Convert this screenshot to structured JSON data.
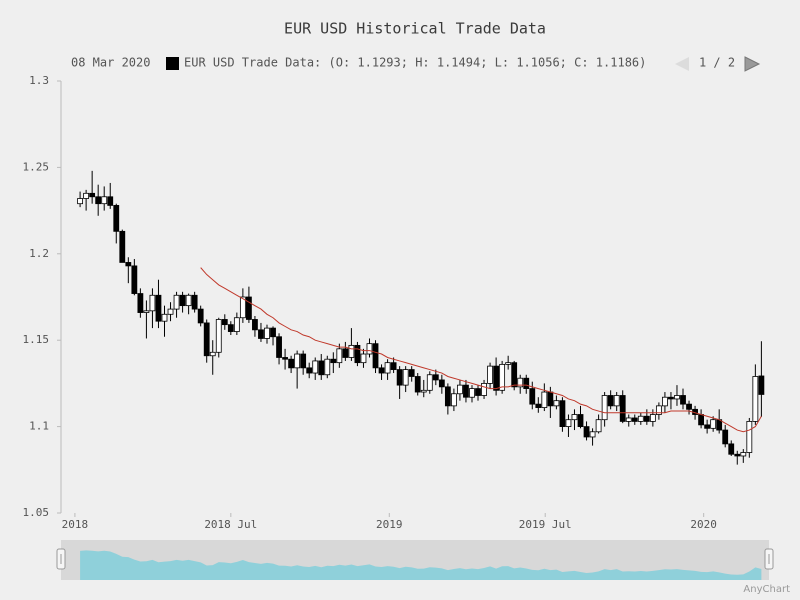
{
  "chart_data": {
    "type": "candlestick",
    "title": "EUR USD Historical Trade Data",
    "legend": {
      "date": "08 Mar 2020",
      "text": "EUR USD Trade Data: (O: 1.1293; H: 1.1494; L: 1.1056; C: 1.1186)",
      "pager": "1 / 2"
    },
    "credits": "AnyChart",
    "x": [
      "2018-01-07",
      "2018-01-14",
      "2018-01-21",
      "2018-01-28",
      "2018-02-04",
      "2018-02-11",
      "2018-02-18",
      "2018-02-25",
      "2018-03-04",
      "2018-03-11",
      "2018-03-18",
      "2018-03-25",
      "2018-04-01",
      "2018-04-08",
      "2018-04-15",
      "2018-04-22",
      "2018-04-29",
      "2018-05-06",
      "2018-05-13",
      "2018-05-20",
      "2018-05-27",
      "2018-06-03",
      "2018-06-10",
      "2018-06-17",
      "2018-06-24",
      "2018-07-01",
      "2018-07-08",
      "2018-07-15",
      "2018-07-22",
      "2018-07-29",
      "2018-08-05",
      "2018-08-12",
      "2018-08-19",
      "2018-08-26",
      "2018-09-02",
      "2018-09-09",
      "2018-09-16",
      "2018-09-23",
      "2018-09-30",
      "2018-10-07",
      "2018-10-14",
      "2018-10-21",
      "2018-10-28",
      "2018-11-04",
      "2018-11-11",
      "2018-11-18",
      "2018-11-25",
      "2018-12-02",
      "2018-12-09",
      "2018-12-16",
      "2018-12-23",
      "2018-12-30",
      "2019-01-06",
      "2019-01-13",
      "2019-01-20",
      "2019-01-27",
      "2019-02-03",
      "2019-02-10",
      "2019-02-17",
      "2019-02-24",
      "2019-03-03",
      "2019-03-10",
      "2019-03-17",
      "2019-03-24",
      "2019-03-31",
      "2019-04-07",
      "2019-04-14",
      "2019-04-21",
      "2019-04-28",
      "2019-05-05",
      "2019-05-12",
      "2019-05-19",
      "2019-05-26",
      "2019-06-02",
      "2019-06-09",
      "2019-06-16",
      "2019-06-23",
      "2019-06-30",
      "2019-07-07",
      "2019-07-14",
      "2019-07-21",
      "2019-07-28",
      "2019-08-04",
      "2019-08-11",
      "2019-08-18",
      "2019-08-25",
      "2019-09-01",
      "2019-09-08",
      "2019-09-15",
      "2019-09-22",
      "2019-09-29",
      "2019-10-06",
      "2019-10-13",
      "2019-10-20",
      "2019-10-27",
      "2019-11-03",
      "2019-11-10",
      "2019-11-17",
      "2019-11-24",
      "2019-12-01",
      "2019-12-08",
      "2019-12-15",
      "2019-12-22",
      "2019-12-29",
      "2020-01-05",
      "2020-01-12",
      "2020-01-19",
      "2020-01-26",
      "2020-02-02",
      "2020-02-09",
      "2020-02-16",
      "2020-02-23",
      "2020-03-01",
      "2020-03-08"
    ],
    "series": [
      {
        "name": "EUR USD Trade Data",
        "rising_color": "#ffffff",
        "falling_color": "#000000",
        "stroke": "#000000",
        "scroller_color": "#8fd0da",
        "values": [
          [
            1.229,
            1.236,
            1.227,
            1.232
          ],
          [
            1.232,
            1.237,
            1.225,
            1.235
          ],
          [
            1.235,
            1.248,
            1.229,
            1.233
          ],
          [
            1.233,
            1.24,
            1.222,
            1.229
          ],
          [
            1.229,
            1.239,
            1.225,
            1.233
          ],
          [
            1.233,
            1.241,
            1.226,
            1.228
          ],
          [
            1.228,
            1.229,
            1.206,
            1.213
          ],
          [
            1.213,
            1.214,
            1.195,
            1.195
          ],
          [
            1.195,
            1.198,
            1.183,
            1.193
          ],
          [
            1.193,
            1.197,
            1.176,
            1.177
          ],
          [
            1.177,
            1.18,
            1.163,
            1.166
          ],
          [
            1.166,
            1.173,
            1.151,
            1.167
          ],
          [
            1.167,
            1.18,
            1.157,
            1.176
          ],
          [
            1.176,
            1.185,
            1.157,
            1.161
          ],
          [
            1.161,
            1.17,
            1.152,
            1.165
          ],
          [
            1.165,
            1.172,
            1.161,
            1.168
          ],
          [
            1.168,
            1.178,
            1.163,
            1.176
          ],
          [
            1.176,
            1.178,
            1.166,
            1.17
          ],
          [
            1.17,
            1.177,
            1.165,
            1.176
          ],
          [
            1.176,
            1.178,
            1.166,
            1.168
          ],
          [
            1.168,
            1.17,
            1.158,
            1.16
          ],
          [
            1.16,
            1.162,
            1.137,
            1.141
          ],
          [
            1.141,
            1.15,
            1.13,
            1.143
          ],
          [
            1.143,
            1.163,
            1.14,
            1.162
          ],
          [
            1.162,
            1.165,
            1.156,
            1.159
          ],
          [
            1.159,
            1.161,
            1.153,
            1.155
          ],
          [
            1.155,
            1.166,
            1.153,
            1.163
          ],
          [
            1.163,
            1.18,
            1.16,
            1.175
          ],
          [
            1.175,
            1.181,
            1.16,
            1.162
          ],
          [
            1.162,
            1.164,
            1.152,
            1.156
          ],
          [
            1.156,
            1.16,
            1.149,
            1.151
          ],
          [
            1.151,
            1.159,
            1.148,
            1.157
          ],
          [
            1.157,
            1.158,
            1.147,
            1.152
          ],
          [
            1.152,
            1.154,
            1.136,
            1.14
          ],
          [
            1.14,
            1.145,
            1.133,
            1.139
          ],
          [
            1.139,
            1.141,
            1.131,
            1.134
          ],
          [
            1.134,
            1.144,
            1.122,
            1.142
          ],
          [
            1.142,
            1.144,
            1.13,
            1.134
          ],
          [
            1.134,
            1.137,
            1.128,
            1.131
          ],
          [
            1.131,
            1.14,
            1.127,
            1.138
          ],
          [
            1.138,
            1.142,
            1.127,
            1.13
          ],
          [
            1.13,
            1.141,
            1.128,
            1.139
          ],
          [
            1.139,
            1.143,
            1.131,
            1.137
          ],
          [
            1.137,
            1.148,
            1.134,
            1.145
          ],
          [
            1.145,
            1.149,
            1.138,
            1.14
          ],
          [
            1.14,
            1.157,
            1.138,
            1.147
          ],
          [
            1.147,
            1.149,
            1.135,
            1.137
          ],
          [
            1.137,
            1.145,
            1.134,
            1.142
          ],
          [
            1.142,
            1.151,
            1.14,
            1.148
          ],
          [
            1.148,
            1.15,
            1.131,
            1.134
          ],
          [
            1.134,
            1.136,
            1.127,
            1.131
          ],
          [
            1.131,
            1.139,
            1.127,
            1.137
          ],
          [
            1.137,
            1.14,
            1.131,
            1.133
          ],
          [
            1.133,
            1.135,
            1.116,
            1.124
          ],
          [
            1.124,
            1.135,
            1.12,
            1.133
          ],
          [
            1.133,
            1.135,
            1.126,
            1.129
          ],
          [
            1.129,
            1.131,
            1.118,
            1.12
          ],
          [
            1.12,
            1.127,
            1.117,
            1.121
          ],
          [
            1.121,
            1.132,
            1.119,
            1.13
          ],
          [
            1.13,
            1.133,
            1.124,
            1.127
          ],
          [
            1.127,
            1.13,
            1.119,
            1.123
          ],
          [
            1.123,
            1.125,
            1.107,
            1.112
          ],
          [
            1.112,
            1.122,
            1.109,
            1.119
          ],
          [
            1.119,
            1.127,
            1.115,
            1.124
          ],
          [
            1.124,
            1.127,
            1.114,
            1.117
          ],
          [
            1.117,
            1.124,
            1.114,
            1.122
          ],
          [
            1.122,
            1.124,
            1.115,
            1.118
          ],
          [
            1.118,
            1.127,
            1.116,
            1.125
          ],
          [
            1.125,
            1.137,
            1.122,
            1.135
          ],
          [
            1.135,
            1.14,
            1.118,
            1.121
          ],
          [
            1.121,
            1.138,
            1.119,
            1.136
          ],
          [
            1.136,
            1.141,
            1.133,
            1.137
          ],
          [
            1.137,
            1.138,
            1.121,
            1.123
          ],
          [
            1.123,
            1.13,
            1.119,
            1.128
          ],
          [
            1.128,
            1.13,
            1.119,
            1.122
          ],
          [
            1.122,
            1.126,
            1.11,
            1.113
          ],
          [
            1.113,
            1.117,
            1.108,
            1.111
          ],
          [
            1.111,
            1.125,
            1.109,
            1.12
          ],
          [
            1.12,
            1.123,
            1.105,
            1.112
          ],
          [
            1.112,
            1.118,
            1.11,
            1.115
          ],
          [
            1.115,
            1.117,
            1.097,
            1.1
          ],
          [
            1.1,
            1.107,
            1.094,
            1.104
          ],
          [
            1.104,
            1.11,
            1.098,
            1.107
          ],
          [
            1.107,
            1.112,
            1.099,
            1.1
          ],
          [
            1.1,
            1.103,
            1.092,
            1.094
          ],
          [
            1.094,
            1.099,
            1.089,
            1.097
          ],
          [
            1.097,
            1.107,
            1.096,
            1.104
          ],
          [
            1.104,
            1.12,
            1.1,
            1.118
          ],
          [
            1.118,
            1.121,
            1.11,
            1.112
          ],
          [
            1.112,
            1.12,
            1.109,
            1.118
          ],
          [
            1.118,
            1.121,
            1.102,
            1.103
          ],
          [
            1.103,
            1.107,
            1.1,
            1.105
          ],
          [
            1.105,
            1.107,
            1.101,
            1.103
          ],
          [
            1.103,
            1.108,
            1.101,
            1.106
          ],
          [
            1.106,
            1.11,
            1.101,
            1.103
          ],
          [
            1.103,
            1.11,
            1.1,
            1.107
          ],
          [
            1.107,
            1.114,
            1.104,
            1.112
          ],
          [
            1.112,
            1.12,
            1.108,
            1.117
          ],
          [
            1.117,
            1.12,
            1.11,
            1.116
          ],
          [
            1.116,
            1.124,
            1.112,
            1.118
          ],
          [
            1.118,
            1.122,
            1.11,
            1.113
          ],
          [
            1.113,
            1.115,
            1.107,
            1.11
          ],
          [
            1.11,
            1.112,
            1.104,
            1.107
          ],
          [
            1.107,
            1.11,
            1.099,
            1.101
          ],
          [
            1.101,
            1.104,
            1.096,
            1.099
          ],
          [
            1.099,
            1.106,
            1.097,
            1.104
          ],
          [
            1.104,
            1.11,
            1.096,
            1.098
          ],
          [
            1.098,
            1.101,
            1.088,
            1.09
          ],
          [
            1.09,
            1.092,
            1.083,
            1.084
          ],
          [
            1.084,
            1.086,
            1.078,
            1.083
          ],
          [
            1.083,
            1.087,
            1.079,
            1.085
          ],
          [
            1.085,
            1.105,
            1.082,
            1.103
          ],
          [
            1.103,
            1.136,
            1.101,
            1.129
          ],
          [
            1.1293,
            1.1494,
            1.1056,
            1.1186
          ]
        ]
      },
      {
        "type": "line",
        "color": "#c0392b",
        "values": [
          null,
          null,
          null,
          null,
          null,
          null,
          null,
          null,
          null,
          null,
          null,
          null,
          null,
          null,
          null,
          null,
          null,
          null,
          null,
          null,
          1.192,
          1.188,
          1.185,
          1.182,
          1.18,
          1.178,
          1.176,
          1.174,
          1.172,
          1.17,
          1.168,
          1.165,
          1.163,
          1.16,
          1.158,
          1.156,
          1.155,
          1.153,
          1.152,
          1.15,
          1.149,
          1.148,
          1.147,
          1.146,
          1.146,
          1.145,
          1.145,
          1.144,
          1.144,
          1.143,
          1.142,
          1.14,
          1.139,
          1.138,
          1.137,
          1.136,
          1.135,
          1.134,
          1.133,
          1.132,
          1.131,
          1.129,
          1.128,
          1.127,
          1.126,
          1.125,
          1.124,
          1.123,
          1.122,
          1.122,
          1.123,
          1.123,
          1.124,
          1.124,
          1.124,
          1.123,
          1.122,
          1.121,
          1.12,
          1.119,
          1.118,
          1.116,
          1.115,
          1.113,
          1.112,
          1.11,
          1.109,
          1.108,
          1.108,
          1.108,
          1.108,
          1.108,
          1.108,
          1.108,
          1.108,
          1.108,
          1.108,
          1.108,
          1.109,
          1.109,
          1.109,
          1.109,
          1.108,
          1.107,
          1.106,
          1.105,
          1.104,
          1.102,
          1.1,
          1.098,
          1.097,
          1.098,
          1.1,
          1.106
        ]
      }
    ],
    "xlim": [
      "2017-12-17",
      "2020-03-18"
    ],
    "xticks": [
      {
        "value": "2018-01-01",
        "label": "2018"
      },
      {
        "value": "2018-07-01",
        "label": "2018 Jul"
      },
      {
        "value": "2019-01-01",
        "label": "2019"
      },
      {
        "value": "2019-07-01",
        "label": "2019 Jul"
      },
      {
        "value": "2020-01-01",
        "label": "2020"
      }
    ],
    "ylim": [
      1.05,
      1.3
    ],
    "yticks": [
      1.05,
      1.1,
      1.15,
      1.2,
      1.25,
      1.3
    ],
    "grid": false
  }
}
